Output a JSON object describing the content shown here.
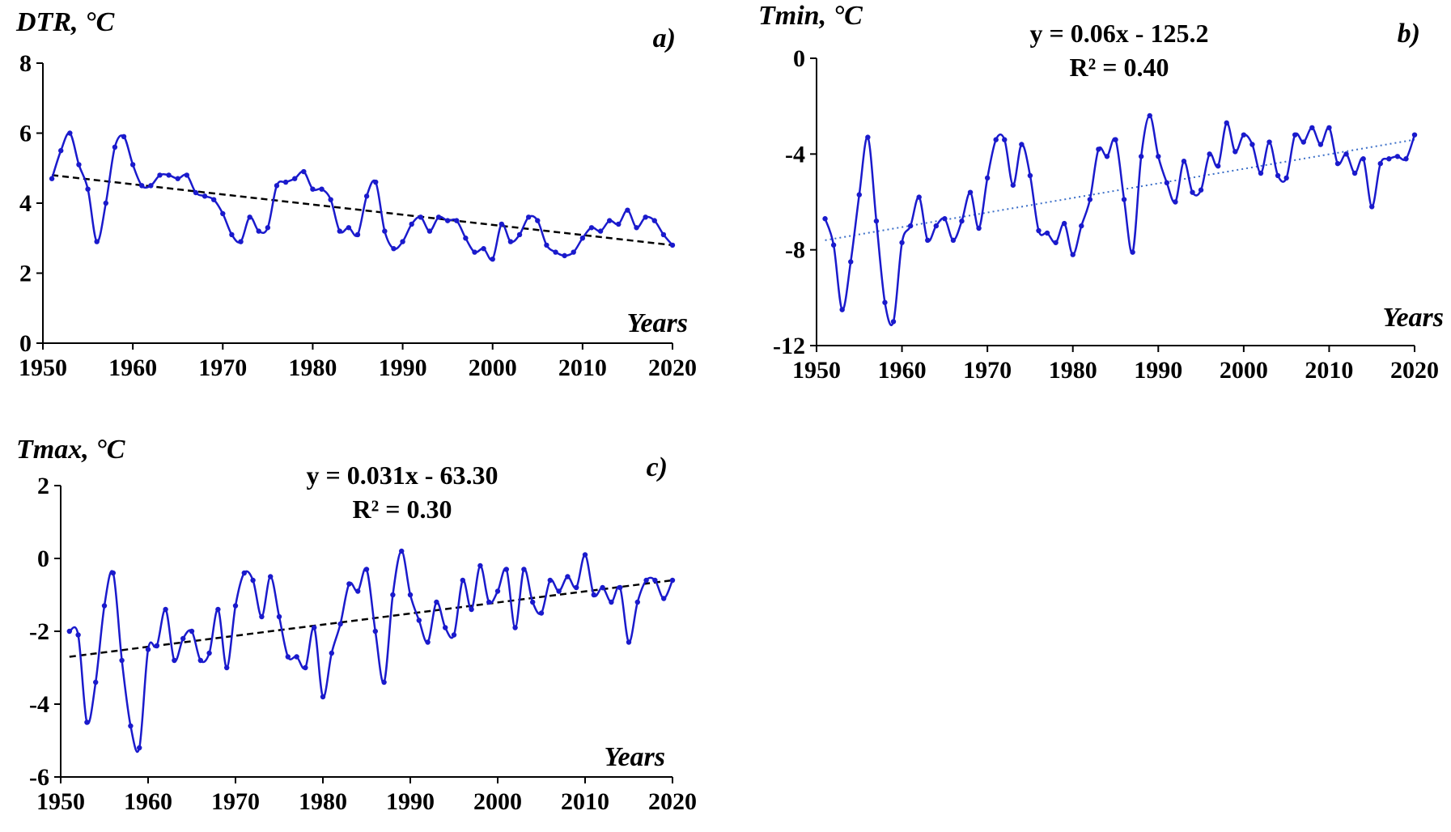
{
  "chart_data": [
    {
      "id": "a",
      "type": "line",
      "panel_label": "a)",
      "ylabel": "DTR, °C",
      "xlabel": "Years",
      "xlim": [
        1950,
        2020
      ],
      "ylim": [
        0,
        8
      ],
      "xticks": [
        1950,
        1960,
        1970,
        1980,
        1990,
        2000,
        2010,
        2020
      ],
      "yticks": [
        0,
        2,
        4,
        6,
        8
      ],
      "equation": "",
      "r2": "",
      "series_color": "#1a1acc",
      "trend_color": "#000000",
      "trend_style": "dashed",
      "trend": [
        [
          1951,
          4.8
        ],
        [
          2020,
          2.8
        ]
      ],
      "x": [
        1951,
        1952,
        1953,
        1954,
        1955,
        1956,
        1957,
        1958,
        1959,
        1960,
        1961,
        1962,
        1963,
        1964,
        1965,
        1966,
        1967,
        1968,
        1969,
        1970,
        1971,
        1972,
        1973,
        1974,
        1975,
        1976,
        1977,
        1978,
        1979,
        1980,
        1981,
        1982,
        1983,
        1984,
        1985,
        1986,
        1987,
        1988,
        1989,
        1990,
        1991,
        1992,
        1993,
        1994,
        1995,
        1996,
        1997,
        1998,
        1999,
        2000,
        2001,
        2002,
        2003,
        2004,
        2005,
        2006,
        2007,
        2008,
        2009,
        2010,
        2011,
        2012,
        2013,
        2014,
        2015,
        2016,
        2017,
        2018,
        2019,
        2020
      ],
      "y": [
        4.7,
        5.5,
        6.0,
        5.1,
        4.4,
        2.9,
        4.0,
        5.6,
        5.9,
        5.1,
        4.5,
        4.5,
        4.8,
        4.8,
        4.7,
        4.8,
        4.3,
        4.2,
        4.1,
        3.7,
        3.1,
        2.9,
        3.6,
        3.2,
        3.3,
        4.5,
        4.6,
        4.7,
        4.9,
        4.4,
        4.4,
        4.1,
        3.2,
        3.3,
        3.1,
        4.2,
        4.6,
        3.2,
        2.7,
        2.9,
        3.4,
        3.6,
        3.2,
        3.6,
        3.5,
        3.5,
        3.0,
        2.6,
        2.7,
        2.4,
        3.4,
        2.9,
        3.1,
        3.6,
        3.5,
        2.8,
        2.6,
        2.5,
        2.6,
        3.0,
        3.3,
        3.2,
        3.5,
        3.4,
        3.8,
        3.3,
        3.6,
        3.5,
        3.1,
        2.8
      ]
    },
    {
      "id": "b",
      "type": "line",
      "panel_label": "b)",
      "ylabel": "Tmin, °C",
      "xlabel": "Years",
      "xlim": [
        1950,
        2020
      ],
      "ylim": [
        -12,
        0
      ],
      "xticks": [
        1950,
        1960,
        1970,
        1980,
        1990,
        2000,
        2010,
        2020
      ],
      "yticks": [
        -12,
        -8,
        -4,
        0
      ],
      "equation": "y = 0.06x - 125.2",
      "r2": "R² = 0.40",
      "series_color": "#1a1acc",
      "trend_color": "#3a6ec8",
      "trend_style": "dotted",
      "trend": [
        [
          1951,
          -7.6
        ],
        [
          2020,
          -3.4
        ]
      ],
      "x": [
        1951,
        1952,
        1953,
        1954,
        1955,
        1956,
        1957,
        1958,
        1959,
        1960,
        1961,
        1962,
        1963,
        1964,
        1965,
        1966,
        1967,
        1968,
        1969,
        1970,
        1971,
        1972,
        1973,
        1974,
        1975,
        1976,
        1977,
        1978,
        1979,
        1980,
        1981,
        1982,
        1983,
        1984,
        1985,
        1986,
        1987,
        1988,
        1989,
        1990,
        1991,
        1992,
        1993,
        1994,
        1995,
        1996,
        1997,
        1998,
        1999,
        2000,
        2001,
        2002,
        2003,
        2004,
        2005,
        2006,
        2007,
        2008,
        2009,
        2010,
        2011,
        2012,
        2013,
        2014,
        2015,
        2016,
        2017,
        2018,
        2019,
        2020
      ],
      "y": [
        -6.7,
        -7.8,
        -10.5,
        -8.5,
        -5.7,
        -3.3,
        -6.8,
        -10.2,
        -11.0,
        -7.7,
        -7.0,
        -5.8,
        -7.6,
        -7.0,
        -6.7,
        -7.6,
        -6.8,
        -5.6,
        -7.1,
        -5.0,
        -3.4,
        -3.4,
        -5.3,
        -3.6,
        -4.9,
        -7.2,
        -7.3,
        -7.7,
        -6.9,
        -8.2,
        -7.0,
        -5.9,
        -3.8,
        -4.1,
        -3.4,
        -5.9,
        -8.1,
        -4.1,
        -2.4,
        -4.1,
        -5.2,
        -6.0,
        -4.3,
        -5.6,
        -5.5,
        -4.0,
        -4.5,
        -2.7,
        -3.9,
        -3.2,
        -3.6,
        -4.8,
        -3.5,
        -4.9,
        -5.0,
        -3.2,
        -3.5,
        -2.9,
        -3.6,
        -2.9,
        -4.4,
        -4.0,
        -4.8,
        -4.2,
        -6.2,
        -4.4,
        -4.2,
        -4.1,
        -4.2,
        -3.2
      ]
    },
    {
      "id": "c",
      "type": "line",
      "panel_label": "c)",
      "ylabel": "Tmax, °C",
      "xlabel": "Years",
      "xlim": [
        1950,
        2020
      ],
      "ylim": [
        -6,
        2
      ],
      "xticks": [
        1950,
        1960,
        1970,
        1980,
        1990,
        2000,
        2010,
        2020
      ],
      "yticks": [
        -6,
        -4,
        -2,
        0,
        2
      ],
      "equation": "y = 0.031x - 63.30",
      "r2": "R² = 0.30",
      "series_color": "#1a1acc",
      "trend_color": "#000000",
      "trend_style": "dashed",
      "trend": [
        [
          1951,
          -2.7
        ],
        [
          2020,
          -0.6
        ]
      ],
      "x": [
        1951,
        1952,
        1953,
        1954,
        1955,
        1956,
        1957,
        1958,
        1959,
        1960,
        1961,
        1962,
        1963,
        1964,
        1965,
        1966,
        1967,
        1968,
        1969,
        1970,
        1971,
        1972,
        1973,
        1974,
        1975,
        1976,
        1977,
        1978,
        1979,
        1980,
        1981,
        1982,
        1983,
        1984,
        1985,
        1986,
        1987,
        1988,
        1989,
        1990,
        1991,
        1992,
        1993,
        1994,
        1995,
        1996,
        1997,
        1998,
        1999,
        2000,
        2001,
        2002,
        2003,
        2004,
        2005,
        2006,
        2007,
        2008,
        2009,
        2010,
        2011,
        2012,
        2013,
        2014,
        2015,
        2016,
        2017,
        2018,
        2019,
        2020
      ],
      "y": [
        -2.0,
        -2.1,
        -4.5,
        -3.4,
        -1.3,
        -0.4,
        -2.8,
        -4.6,
        -5.2,
        -2.5,
        -2.4,
        -1.4,
        -2.8,
        -2.2,
        -2.0,
        -2.8,
        -2.6,
        -1.4,
        -3.0,
        -1.3,
        -0.4,
        -0.6,
        -1.6,
        -0.5,
        -1.6,
        -2.7,
        -2.7,
        -3.0,
        -1.9,
        -3.8,
        -2.6,
        -1.8,
        -0.7,
        -0.9,
        -0.3,
        -2.0,
        -3.4,
        -1.0,
        0.2,
        -1.0,
        -1.7,
        -2.3,
        -1.2,
        -1.9,
        -2.1,
        -0.6,
        -1.4,
        -0.2,
        -1.2,
        -0.9,
        -0.3,
        -1.9,
        -0.3,
        -1.2,
        -1.5,
        -0.6,
        -0.9,
        -0.5,
        -0.8,
        0.1,
        -1.0,
        -0.8,
        -1.2,
        -0.8,
        -2.3,
        -1.2,
        -0.6,
        -0.6,
        -1.1,
        -0.6
      ]
    }
  ]
}
